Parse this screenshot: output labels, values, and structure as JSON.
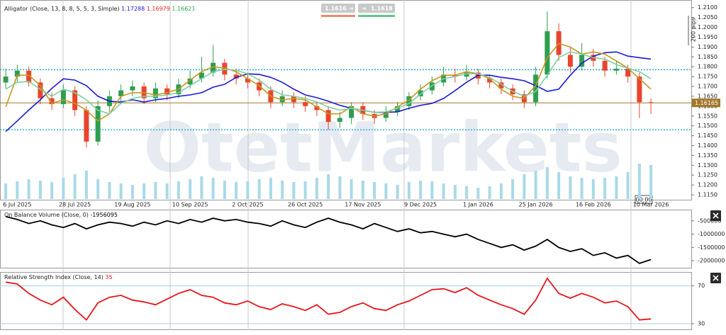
{
  "watermark": "OtetMarkets",
  "toolbar": {
    "bid": 1.1616,
    "ask": 1.1618
  },
  "price_axis_note": "200 pips",
  "crosshair_time": "00:00",
  "chart_data": [
    {
      "type": "candlestick",
      "title": "Alligator (Close, 13, 8, 8, 5, 5, 3, Simple)",
      "categories": [
        null,
        "6 Jul 2025",
        null,
        null,
        null,
        null,
        "28 Jul 2025",
        null,
        null,
        null,
        null,
        "19 Aug 2025",
        null,
        null,
        null,
        null,
        "10 Sep 2025",
        null,
        null,
        null,
        null,
        "2 Oct 2025",
        null,
        null,
        null,
        null,
        "26 Oct 2025",
        null,
        null,
        null,
        null,
        "17 Nov 2025",
        null,
        null,
        null,
        null,
        "9 Dec 2025",
        null,
        null,
        null,
        null,
        "1 Jan 2026",
        null,
        null,
        null,
        null,
        "25 Jan 2026",
        null,
        null,
        null,
        null,
        "16 Feb 2026",
        null,
        null,
        null,
        null,
        "10 Mar 2026"
      ],
      "open": [
        1.172,
        1.175,
        1.178,
        1.172,
        1.164,
        1.161,
        1.168,
        1.158,
        1.142,
        1.16,
        1.165,
        1.168,
        1.17,
        1.164,
        1.169,
        1.166,
        1.171,
        1.174,
        1.177,
        1.182,
        1.176,
        1.174,
        1.172,
        1.168,
        1.162,
        1.165,
        1.162,
        1.16,
        1.158,
        1.152,
        1.154,
        1.16,
        1.156,
        1.154,
        1.157,
        1.16,
        1.165,
        1.168,
        1.172,
        1.176,
        1.175,
        1.177,
        1.174,
        1.172,
        1.169,
        1.166,
        1.162,
        1.176,
        1.198,
        1.186,
        1.18,
        1.186,
        1.183,
        1.178,
        1.179,
        1.175,
        1.162
      ],
      "high": [
        1.179,
        1.181,
        1.18,
        1.174,
        1.167,
        1.171,
        1.17,
        1.16,
        1.163,
        1.168,
        1.171,
        1.173,
        1.172,
        1.172,
        1.171,
        1.174,
        1.178,
        1.185,
        1.191,
        1.184,
        1.179,
        1.177,
        1.174,
        1.17,
        1.168,
        1.167,
        1.165,
        1.162,
        1.16,
        1.157,
        1.162,
        1.162,
        1.158,
        1.16,
        1.162,
        1.167,
        1.171,
        1.175,
        1.18,
        1.179,
        1.181,
        1.179,
        1.176,
        1.174,
        1.171,
        1.168,
        1.18,
        1.208,
        1.202,
        1.19,
        1.192,
        1.189,
        1.185,
        1.183,
        1.181,
        1.177,
        1.164
      ],
      "low": [
        1.169,
        1.172,
        1.17,
        1.161,
        1.158,
        1.159,
        1.155,
        1.139,
        1.14,
        1.157,
        1.162,
        1.165,
        1.161,
        1.162,
        1.163,
        1.164,
        1.169,
        1.172,
        1.175,
        1.173,
        1.171,
        1.169,
        1.165,
        1.159,
        1.16,
        1.159,
        1.157,
        1.155,
        1.148,
        1.149,
        1.151,
        1.153,
        1.151,
        1.152,
        1.155,
        1.158,
        1.163,
        1.166,
        1.17,
        1.172,
        1.173,
        1.171,
        1.169,
        1.166,
        1.163,
        1.159,
        1.16,
        1.174,
        1.183,
        1.177,
        1.178,
        1.18,
        1.175,
        1.176,
        1.172,
        1.154,
        1.156
      ],
      "close": [
        1.175,
        1.178,
        1.172,
        1.164,
        1.161,
        1.168,
        1.158,
        1.142,
        1.16,
        1.165,
        1.168,
        1.17,
        1.164,
        1.169,
        1.166,
        1.171,
        1.174,
        1.177,
        1.182,
        1.176,
        1.174,
        1.172,
        1.168,
        1.162,
        1.165,
        1.162,
        1.16,
        1.158,
        1.152,
        1.154,
        1.16,
        1.156,
        1.154,
        1.157,
        1.16,
        1.165,
        1.168,
        1.172,
        1.176,
        1.175,
        1.177,
        1.174,
        1.172,
        1.169,
        1.166,
        1.162,
        1.176,
        1.198,
        1.186,
        1.18,
        1.186,
        1.183,
        1.178,
        1.179,
        1.175,
        1.162,
        1.16165
      ],
      "volume": [
        22,
        25,
        28,
        26,
        24,
        30,
        35,
        40,
        28,
        24,
        22,
        20,
        22,
        24,
        22,
        25,
        28,
        32,
        30,
        26,
        24,
        25,
        28,
        30,
        26,
        24,
        25,
        30,
        35,
        32,
        28,
        26,
        24,
        22,
        20,
        24,
        26,
        25,
        22,
        20,
        18,
        16,
        18,
        22,
        28,
        35,
        40,
        45,
        38,
        32,
        30,
        28,
        30,
        32,
        38,
        50,
        48
      ],
      "up_color": "#2e9e4f",
      "down_color": "#e8452c",
      "volume_color": "#a9d9e8",
      "series": [
        {
          "color": "#1a1ad6",
          "label_color": "#1a1ad6",
          "legend_value": 1.17288,
          "values": [
            1.1471,
            1.1525,
            1.158,
            1.1632,
            1.169,
            1.1739,
            1.1732,
            1.1704,
            1.165,
            1.1625,
            1.1621,
            1.1632,
            1.1621,
            1.1632,
            1.1639,
            1.165,
            1.1657,
            1.1668,
            1.1696,
            1.1711,
            1.1746,
            1.1764,
            1.1761,
            1.1746,
            1.1721,
            1.1686,
            1.1657,
            1.1643,
            1.1625,
            1.1604,
            1.1589,
            1.1579,
            1.1568,
            1.1568,
            1.1571,
            1.1589,
            1.1604,
            1.1614,
            1.1639,
            1.1679,
            1.1721,
            1.1757,
            1.1757,
            1.1746,
            1.1739,
            1.1729,
            1.1704,
            1.1675,
            1.1686,
            1.1757,
            1.1818,
            1.1854,
            1.1871,
            1.1875,
            1.1854,
            1.1846,
            1.1839
          ]
        },
        {
          "color": "#c8961e",
          "label_color": "#e0242a",
          "legend_value": 1.16979,
          "values": [
            1.1596,
            1.1757,
            1.1757,
            1.1704,
            1.1614,
            1.1632,
            1.1614,
            1.1579,
            1.1525,
            1.1561,
            1.165,
            1.1668,
            1.1668,
            1.1657,
            1.1668,
            1.1686,
            1.1732,
            1.1775,
            1.18,
            1.1793,
            1.1775,
            1.1739,
            1.1704,
            1.165,
            1.1632,
            1.1639,
            1.1632,
            1.1596,
            1.1561,
            1.1561,
            1.1596,
            1.1561,
            1.155,
            1.1561,
            1.1596,
            1.1632,
            1.1686,
            1.1729,
            1.1757,
            1.1757,
            1.1775,
            1.1764,
            1.1739,
            1.1686,
            1.165,
            1.1639,
            1.1704,
            1.1846,
            1.1918,
            1.19,
            1.1864,
            1.1875,
            1.1864,
            1.1829,
            1.1793,
            1.1739,
            1.1686
          ]
        },
        {
          "color": "#7ed0a2",
          "label_color": "#2ea84a",
          "legend_value": 1.16621,
          "values": [
            1.1686,
            1.1721,
            1.1725,
            1.1686,
            1.165,
            1.1686,
            1.1668,
            1.1632,
            1.1579,
            1.1561,
            1.1614,
            1.1639,
            1.165,
            1.165,
            1.1657,
            1.1668,
            1.1704,
            1.1739,
            1.1775,
            1.1786,
            1.1782,
            1.1764,
            1.1732,
            1.1686,
            1.1657,
            1.165,
            1.1639,
            1.1621,
            1.1596,
            1.1579,
            1.1589,
            1.1579,
            1.1568,
            1.1571,
            1.1589,
            1.1614,
            1.1661,
            1.1704,
            1.1739,
            1.175,
            1.1764,
            1.1764,
            1.1746,
            1.1711,
            1.1675,
            1.165,
            1.1675,
            1.1757,
            1.1846,
            1.1875,
            1.1864,
            1.1846,
            1.1839,
            1.1811,
            1.1793,
            1.1775,
            1.1739
          ]
        }
      ],
      "hlines": [
        {
          "value": 1.1785,
          "color": "#22a9d6",
          "style": "dotted"
        },
        {
          "value": 1.148,
          "color": "#22a9d6",
          "style": "dotted"
        },
        {
          "value": 1.16165,
          "color": "#a2782a",
          "style": "solid"
        }
      ],
      "ylim": [
        1.1125,
        1.2135
      ],
      "yticks": [
        {
          "value": 1.21,
          "label": "1.2100"
        },
        {
          "value": 1.205,
          "label": "1.2050"
        },
        {
          "value": 1.2,
          "label": "1.2000"
        },
        {
          "value": 1.195,
          "label": "1.1950"
        },
        {
          "value": 1.19,
          "label": "1.1900"
        },
        {
          "value": 1.185,
          "label": "1.1850"
        },
        {
          "value": 1.18,
          "label": "1.1800"
        },
        {
          "value": 1.175,
          "label": "1.1750"
        },
        {
          "value": 1.17,
          "label": "1.1700"
        },
        {
          "value": 1.165,
          "label": "1.1650"
        },
        {
          "value": 1.16,
          "label": "1.1600"
        },
        {
          "value": 1.155,
          "label": "1.1550"
        },
        {
          "value": 1.15,
          "label": "1.1500"
        },
        {
          "value": 1.145,
          "label": "1.1450"
        },
        {
          "value": 1.14,
          "label": "1.1400"
        },
        {
          "value": 1.135,
          "label": "1.1350"
        },
        {
          "value": 1.13,
          "label": "1.1300"
        },
        {
          "value": 1.125,
          "label": "1.1250"
        },
        {
          "value": 1.12,
          "label": "1.1200"
        },
        {
          "value": 1.115,
          "label": "1.1150"
        }
      ]
    },
    {
      "type": "line",
      "title": "On Balance Volume (Close, 0)",
      "last_value": -1956095,
      "color": "#000000",
      "grid": false,
      "values": [
        -340000,
        -450000,
        -600000,
        -500000,
        -650000,
        -750000,
        -600000,
        -800000,
        -650000,
        -550000,
        -600000,
        -700000,
        -550000,
        -650000,
        -500000,
        -600000,
        -450000,
        -550000,
        -400000,
        -500000,
        -450000,
        -550000,
        -600000,
        -700000,
        -500000,
        -650000,
        -750000,
        -550000,
        -400000,
        -550000,
        -650000,
        -800000,
        -600000,
        -750000,
        -900000,
        -800000,
        -950000,
        -900000,
        -1000000,
        -1100000,
        -1000000,
        -1200000,
        -1350000,
        -1500000,
        -1400000,
        -1600000,
        -1450000,
        -1200000,
        -1500000,
        -1650000,
        -1550000,
        -1800000,
        -1700000,
        -1900000,
        -1800000,
        -2100000,
        -1956095
      ],
      "ylim": [
        -2263000,
        -105000
      ],
      "yticks": [
        -500000,
        -1000000,
        -1500000,
        -2000000
      ]
    },
    {
      "type": "line",
      "title": "Relative Strength Index (Close, 14)",
      "last_value": 35,
      "color": "#e8141a",
      "grid": true,
      "values": [
        74,
        72,
        62,
        55,
        50,
        58,
        45,
        34,
        52,
        58,
        60,
        55,
        53,
        50,
        56,
        62,
        66,
        60,
        58,
        52,
        50,
        54,
        48,
        45,
        51,
        48,
        44,
        50,
        40,
        42,
        48,
        52,
        46,
        44,
        50,
        54,
        60,
        66,
        67,
        63,
        68,
        60,
        55,
        50,
        46,
        40,
        55,
        78,
        62,
        57,
        62,
        58,
        52,
        54,
        48,
        34,
        35
      ],
      "ylim": [
        24,
        84
      ],
      "yticks": [
        70,
        30
      ]
    }
  ]
}
